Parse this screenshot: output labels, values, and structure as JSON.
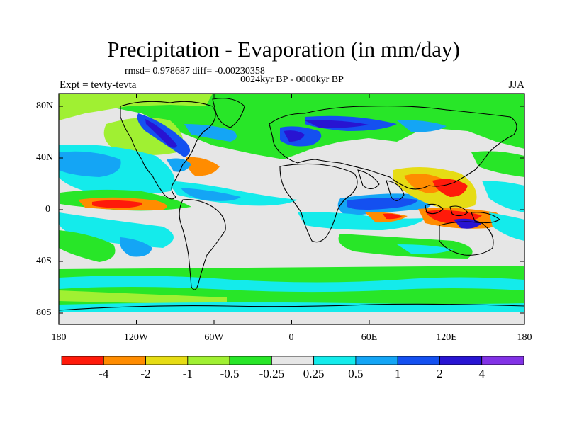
{
  "header": {
    "title": "Precipitation - Evaporation (in mm/day)",
    "stats": "rmsd= 0.978687 diff= -0.00230358",
    "period": "0024kyr BP - 0000kyr BP",
    "experiment": "Expt = tevty-tevta",
    "season": "JJA"
  },
  "map": {
    "lat_labels": [
      "80N",
      "40N",
      "0",
      "40S",
      "80S"
    ],
    "lon_labels": [
      "180",
      "120W",
      "60W",
      "0",
      "60E",
      "120E",
      "180"
    ]
  },
  "colorbar": {
    "labels": [
      "-4",
      "-2",
      "-1",
      "-0.5",
      "-0.25",
      "0.25",
      "0.5",
      "1",
      "2",
      "4"
    ],
    "colors": [
      "#ff1a0a",
      "#ff8c00",
      "#e6dc14",
      "#a0f032",
      "#28e628",
      "#e6e6e6",
      "#14ebeb",
      "#14a5f5",
      "#1450f0",
      "#2814d2",
      "#8232e6"
    ]
  }
}
